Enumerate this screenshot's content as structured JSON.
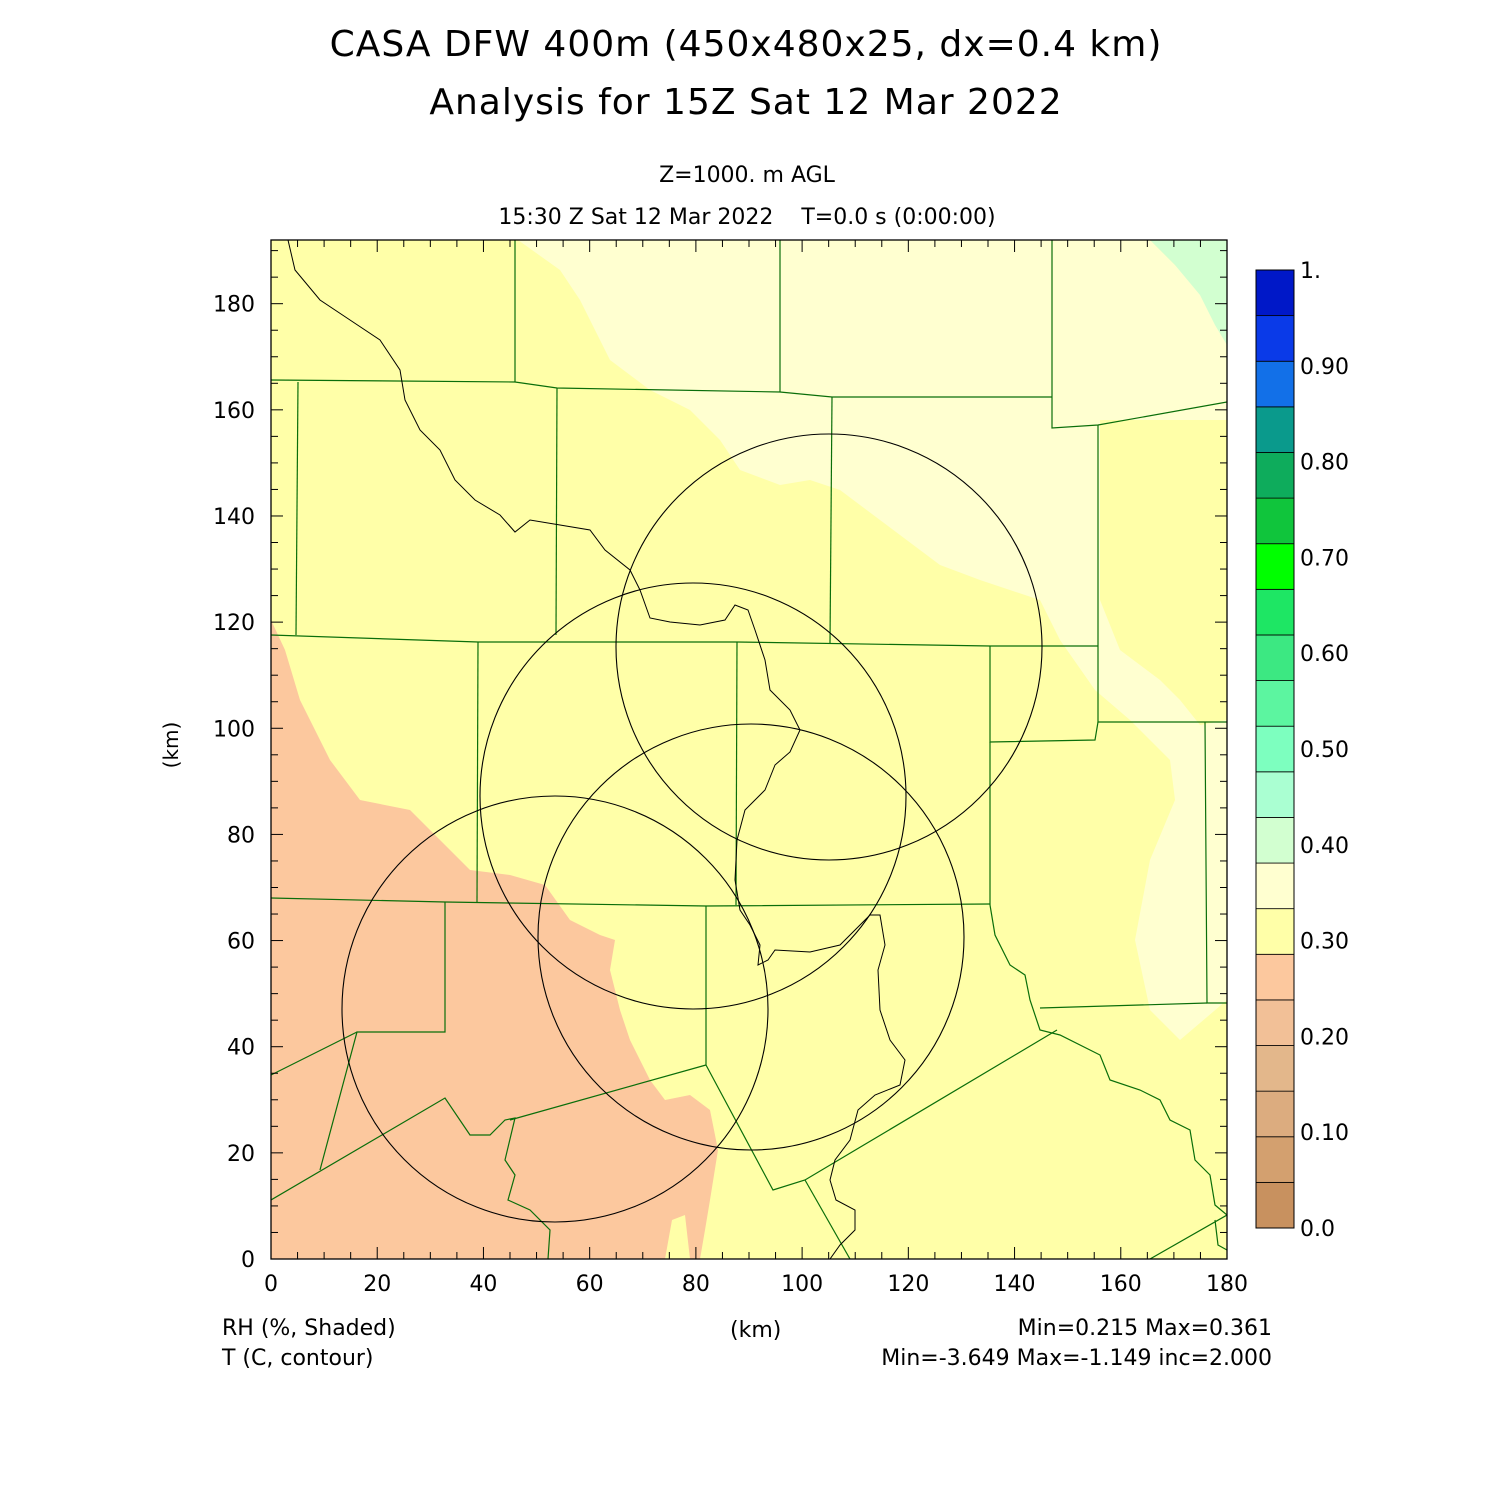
{
  "header": {
    "title_line1": "CASA DFW 400m (450x480x25, dx=0.4 km)",
    "title_line2": "Analysis for 15Z Sat 12 Mar 2022",
    "level": "Z=1000. m AGL",
    "valid_time": "15:30 Z Sat 12 Mar 2022    T=0.0 s (0:00:00)"
  },
  "axes": {
    "x_label": "(km)",
    "y_label": "(km)",
    "x_ticks": [
      "0",
      "20",
      "40",
      "60",
      "80",
      "100",
      "120",
      "140",
      "160",
      "180"
    ],
    "y_ticks": [
      "0",
      "20",
      "40",
      "60",
      "80",
      "100",
      "120",
      "140",
      "160",
      "180"
    ],
    "x_range": [
      0,
      180
    ],
    "y_range": [
      0,
      192
    ]
  },
  "colorbar": {
    "labels": [
      "1.",
      "0.90",
      "0.80",
      "0.70",
      "0.60",
      "0.50",
      "0.40",
      "0.30",
      "0.20",
      "0.10",
      "0.0"
    ],
    "colors": [
      "#c8915f",
      "#d3a06f",
      "#dcac7f",
      "#e3b78b",
      "#f2c097",
      "#fcc89e",
      "#ffffa8",
      "#ffffd0",
      "#d2ffd0",
      "#aaffd2",
      "#7dffbf",
      "#5cf5a0",
      "#3ce882",
      "#1ee664",
      "#00ff00",
      "#10c53c",
      "#0eac5c",
      "#0a9a8c",
      "#1270e8",
      "#0a3ae8",
      "#0018c8"
    ]
  },
  "legend": {
    "shaded": "RH (%, Shaded)",
    "contour": "T (C, contour)",
    "center_label": "(km)",
    "shaded_stats": "Min=0.215 Max=0.361",
    "contour_stats": "Min=-3.649 Max=-1.149 inc=2.000"
  },
  "map": {
    "radar_rings_km": [
      {
        "cx": 105,
        "cy": 116,
        "r": 40
      },
      {
        "cx": 79,
        "cy": 88,
        "r": 40
      },
      {
        "cx": 91,
        "cy": 62,
        "r": 40
      },
      {
        "cx": 55,
        "cy": 49,
        "r": 40
      }
    ],
    "fill_colors": {
      "dry": "#fcc89e",
      "mid": "#ffffa8",
      "moist": "#ffffd0",
      "green": "#d2ffd0"
    },
    "line_colors": {
      "county": "#0a6e0a",
      "contour": "#000000"
    }
  }
}
